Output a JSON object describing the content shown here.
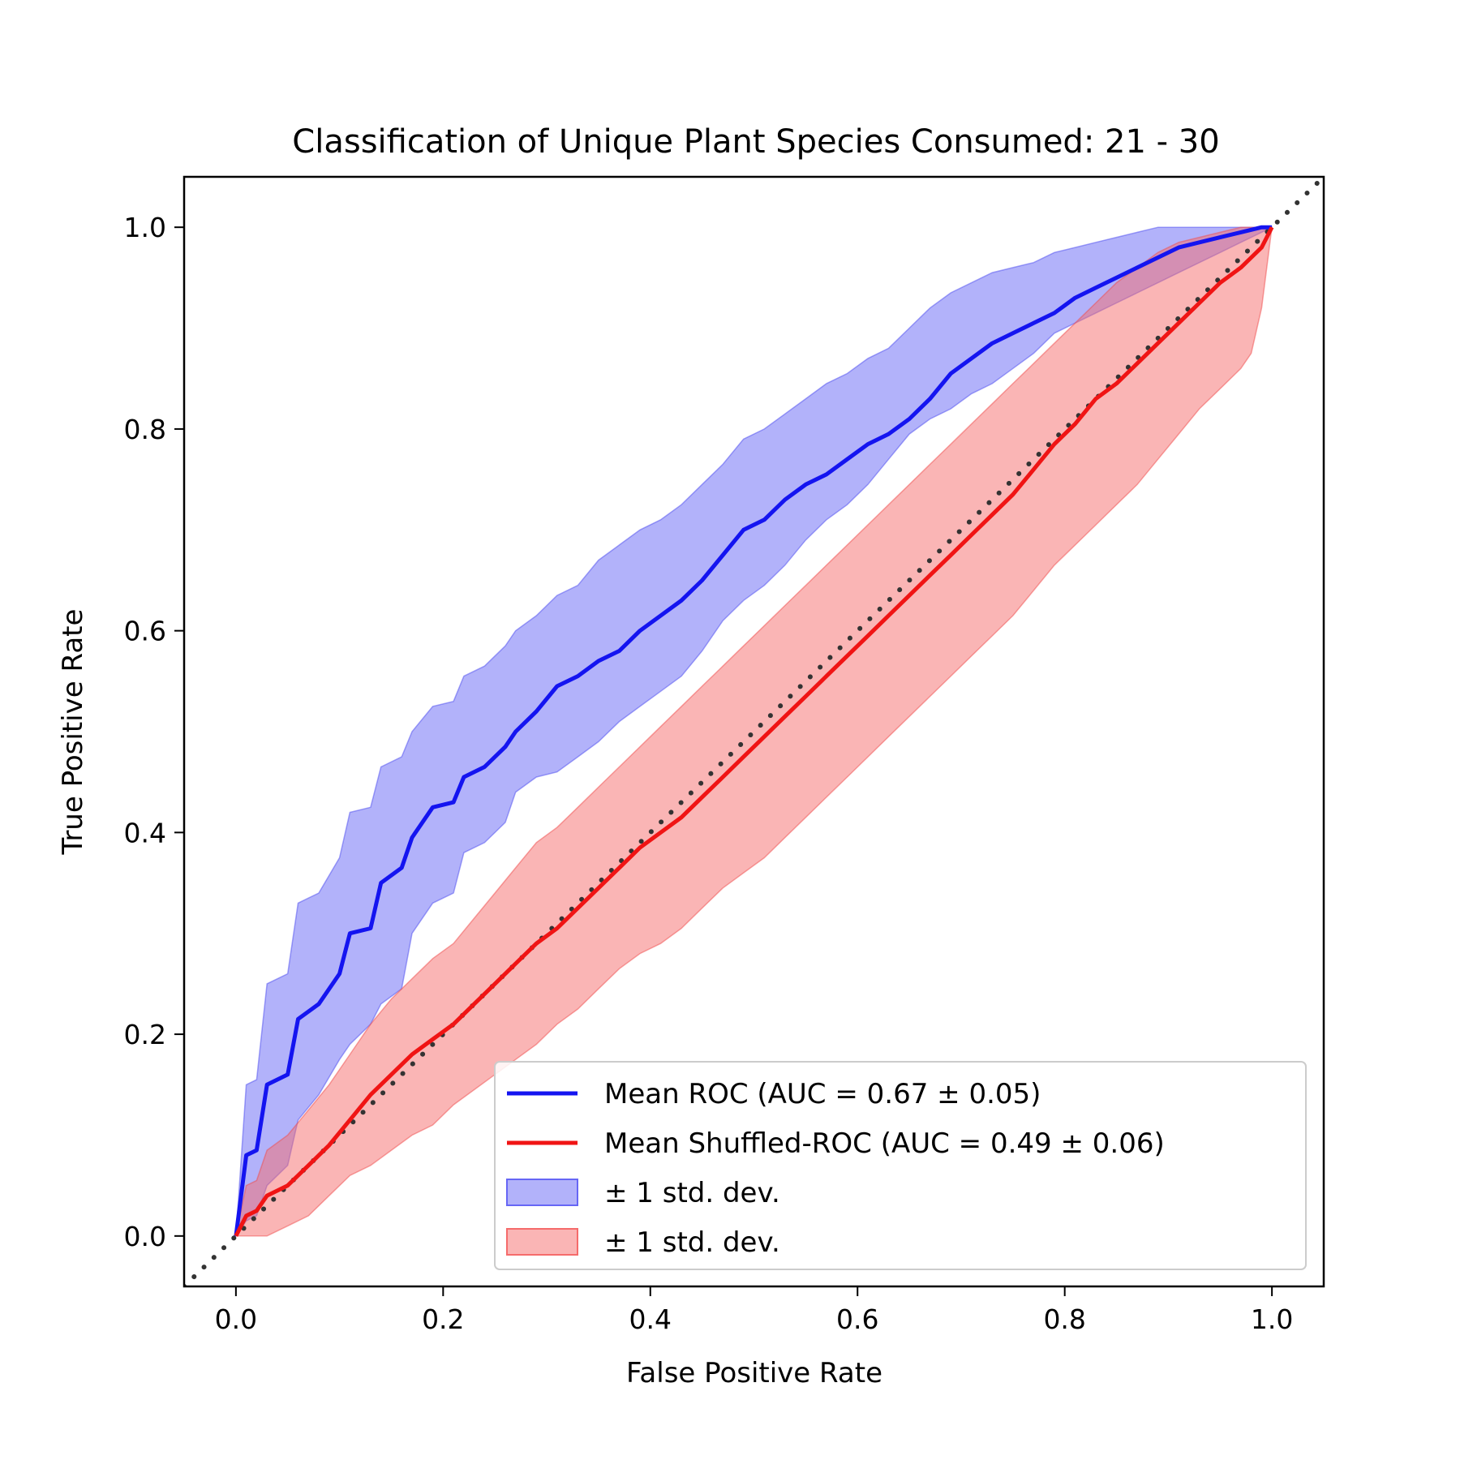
{
  "chart_data": {
    "type": "line",
    "title": "Classification of Unique Plant Species Consumed: 21 - 30",
    "xlabel": "False Positive Rate",
    "ylabel": "True Positive Rate",
    "xlim": [
      -0.05,
      1.05
    ],
    "ylim": [
      -0.05,
      1.05
    ],
    "xticks": [
      "0.0",
      "0.2",
      "0.4",
      "0.6",
      "0.8",
      "1.0"
    ],
    "yticks": [
      "0.0",
      "0.2",
      "0.4",
      "0.6",
      "0.8",
      "1.0"
    ],
    "grid": false,
    "legend_position": "lower-right",
    "series": [
      {
        "name": "Mean ROC (AUC = 0.67 ± 0.05)",
        "color": "#1414f0",
        "x": [
          0,
          0.01,
          0.02,
          0.03,
          0.05,
          0.06,
          0.08,
          0.1,
          0.11,
          0.13,
          0.14,
          0.16,
          0.17,
          0.19,
          0.21,
          0.22,
          0.24,
          0.26,
          0.27,
          0.29,
          0.31,
          0.33,
          0.35,
          0.37,
          0.39,
          0.41,
          0.43,
          0.45,
          0.47,
          0.49,
          0.51,
          0.53,
          0.55,
          0.57,
          0.59,
          0.61,
          0.63,
          0.65,
          0.67,
          0.69,
          0.71,
          0.73,
          0.75,
          0.77,
          0.79,
          0.81,
          0.83,
          0.85,
          0.87,
          0.89,
          0.91,
          0.93,
          0.95,
          0.97,
          0.99,
          1.0
        ],
        "y": [
          0,
          0.08,
          0.085,
          0.15,
          0.16,
          0.215,
          0.23,
          0.26,
          0.3,
          0.305,
          0.35,
          0.365,
          0.395,
          0.425,
          0.43,
          0.455,
          0.465,
          0.485,
          0.5,
          0.52,
          0.545,
          0.555,
          0.57,
          0.58,
          0.6,
          0.615,
          0.63,
          0.65,
          0.675,
          0.7,
          0.71,
          0.73,
          0.745,
          0.755,
          0.77,
          0.785,
          0.795,
          0.81,
          0.83,
          0.855,
          0.87,
          0.885,
          0.895,
          0.905,
          0.915,
          0.93,
          0.94,
          0.95,
          0.96,
          0.97,
          0.98,
          0.985,
          0.99,
          0.995,
          1.0,
          1.0
        ],
        "std_lower": [
          0,
          0.015,
          0.02,
          0.05,
          0.07,
          0.115,
          0.14,
          0.175,
          0.19,
          0.21,
          0.23,
          0.245,
          0.3,
          0.33,
          0.34,
          0.38,
          0.39,
          0.41,
          0.44,
          0.455,
          0.46,
          0.475,
          0.49,
          0.51,
          0.525,
          0.54,
          0.555,
          0.58,
          0.61,
          0.63,
          0.645,
          0.665,
          0.69,
          0.71,
          0.725,
          0.745,
          0.77,
          0.795,
          0.81,
          0.82,
          0.835,
          0.845,
          0.86,
          0.875,
          0.895,
          0.905,
          0.915,
          0.925,
          0.935,
          0.945,
          0.955,
          0.965,
          0.975,
          0.985,
          0.995,
          1.0
        ],
        "std_upper": [
          0,
          0.15,
          0.155,
          0.25,
          0.26,
          0.33,
          0.34,
          0.375,
          0.42,
          0.425,
          0.465,
          0.475,
          0.5,
          0.525,
          0.53,
          0.555,
          0.565,
          0.585,
          0.6,
          0.615,
          0.635,
          0.645,
          0.67,
          0.685,
          0.7,
          0.71,
          0.725,
          0.745,
          0.765,
          0.79,
          0.8,
          0.815,
          0.83,
          0.845,
          0.855,
          0.87,
          0.88,
          0.9,
          0.92,
          0.935,
          0.945,
          0.955,
          0.96,
          0.965,
          0.975,
          0.98,
          0.985,
          0.99,
          0.995,
          1.0,
          1.0,
          1.0,
          1.0,
          1.0,
          1.0,
          1.0
        ]
      },
      {
        "name": "Mean Shuffled-ROC (AUC = 0.49 ± 0.06)",
        "color": "#f01414",
        "x": [
          0,
          0.01,
          0.02,
          0.03,
          0.05,
          0.07,
          0.09,
          0.11,
          0.13,
          0.15,
          0.17,
          0.19,
          0.21,
          0.23,
          0.25,
          0.27,
          0.29,
          0.31,
          0.33,
          0.35,
          0.37,
          0.39,
          0.41,
          0.43,
          0.45,
          0.47,
          0.49,
          0.51,
          0.53,
          0.55,
          0.57,
          0.59,
          0.61,
          0.63,
          0.65,
          0.67,
          0.69,
          0.71,
          0.73,
          0.75,
          0.77,
          0.79,
          0.81,
          0.83,
          0.85,
          0.87,
          0.89,
          0.91,
          0.93,
          0.95,
          0.97,
          0.98,
          0.99,
          1.0
        ],
        "y": [
          0,
          0.02,
          0.025,
          0.04,
          0.05,
          0.07,
          0.09,
          0.115,
          0.14,
          0.16,
          0.18,
          0.195,
          0.21,
          0.23,
          0.25,
          0.27,
          0.29,
          0.305,
          0.325,
          0.345,
          0.365,
          0.385,
          0.4,
          0.415,
          0.435,
          0.455,
          0.475,
          0.495,
          0.515,
          0.535,
          0.555,
          0.575,
          0.595,
          0.615,
          0.635,
          0.655,
          0.675,
          0.695,
          0.715,
          0.735,
          0.76,
          0.785,
          0.805,
          0.83,
          0.845,
          0.865,
          0.885,
          0.905,
          0.925,
          0.945,
          0.96,
          0.97,
          0.98,
          1.0
        ],
        "std_lower": [
          0,
          0.0,
          0.0,
          0.0,
          0.01,
          0.02,
          0.04,
          0.06,
          0.07,
          0.085,
          0.1,
          0.11,
          0.13,
          0.145,
          0.16,
          0.175,
          0.19,
          0.21,
          0.225,
          0.245,
          0.265,
          0.28,
          0.29,
          0.305,
          0.325,
          0.345,
          0.36,
          0.375,
          0.395,
          0.415,
          0.435,
          0.455,
          0.475,
          0.495,
          0.515,
          0.535,
          0.555,
          0.575,
          0.595,
          0.615,
          0.64,
          0.665,
          0.685,
          0.705,
          0.725,
          0.745,
          0.77,
          0.795,
          0.82,
          0.84,
          0.86,
          0.875,
          0.92,
          1.0
        ],
        "std_upper": [
          0,
          0.05,
          0.055,
          0.085,
          0.1,
          0.125,
          0.15,
          0.18,
          0.21,
          0.235,
          0.255,
          0.275,
          0.29,
          0.315,
          0.34,
          0.365,
          0.39,
          0.405,
          0.425,
          0.445,
          0.465,
          0.485,
          0.505,
          0.525,
          0.545,
          0.565,
          0.585,
          0.605,
          0.625,
          0.645,
          0.665,
          0.685,
          0.705,
          0.725,
          0.745,
          0.765,
          0.785,
          0.805,
          0.825,
          0.845,
          0.865,
          0.885,
          0.905,
          0.925,
          0.945,
          0.96,
          0.975,
          0.985,
          0.99,
          0.995,
          1.0,
          1.0,
          1.0,
          1.0
        ]
      },
      {
        "name": "chance-diagonal",
        "color": "#333333",
        "style": "dotted",
        "x": [
          -0.05,
          1.05
        ],
        "y": [
          -0.05,
          1.05
        ]
      }
    ],
    "legend": [
      {
        "label": "Mean ROC (AUC = 0.67 ± 0.05)",
        "kind": "line",
        "color": "#1414f0"
      },
      {
        "label": "Mean Shuffled-ROC (AUC = 0.49 ± 0.06)",
        "kind": "line",
        "color": "#f01414"
      },
      {
        "label": "± 1 std. dev.",
        "kind": "patch",
        "color": "#6666f5"
      },
      {
        "label": "± 1 std. dev.",
        "kind": "patch",
        "color": "#f56b6b"
      }
    ]
  }
}
